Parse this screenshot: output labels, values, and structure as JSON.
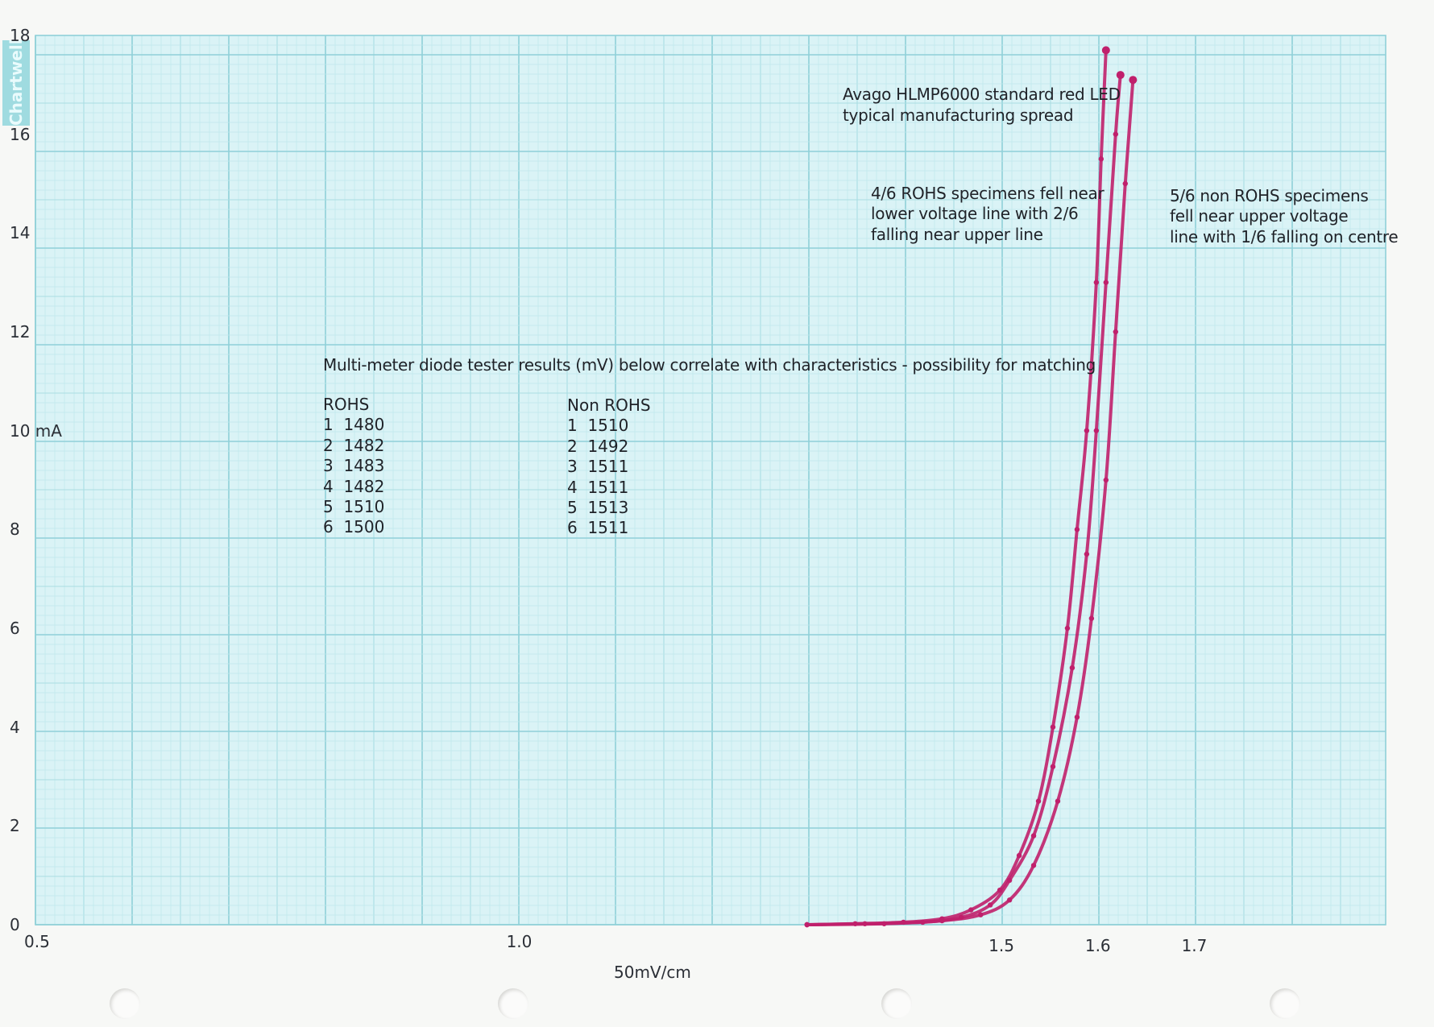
{
  "brand": "Chartwell",
  "chart_data": {
    "type": "line",
    "xlabel": "50mV/cm",
    "ylabel": "mA",
    "xlim": [
      0.5,
      1.9
    ],
    "ylim": [
      0,
      18
    ],
    "grid": true,
    "y_ticks": [
      "0",
      "2",
      "4",
      "6",
      "8",
      "10 mA",
      "12",
      "14",
      "16",
      "18"
    ],
    "y_tick_values": [
      0,
      2,
      4,
      6,
      8,
      10,
      12,
      14,
      16,
      18
    ],
    "x_ticks": [
      {
        "label": "0.5",
        "value": 0.5
      },
      {
        "label": "1.0",
        "value": 1.0
      },
      {
        "label": "1.5",
        "value": 1.5
      },
      {
        "label": "1.6",
        "value": 1.6
      },
      {
        "label": "1.7",
        "value": 1.7
      }
    ],
    "line_color": "#c0206c",
    "series": [
      {
        "x": [
          1.3,
          1.35,
          1.4,
          1.44,
          1.47,
          1.5,
          1.52,
          1.54,
          1.555,
          1.57,
          1.58,
          1.59,
          1.6,
          1.605,
          1.61
        ],
        "y": [
          0,
          0.02,
          0.05,
          0.12,
          0.3,
          0.7,
          1.4,
          2.5,
          4,
          6,
          8,
          10,
          13,
          15.5,
          17.7
        ]
      },
      {
        "x": [
          1.3,
          1.36,
          1.42,
          1.46,
          1.49,
          1.51,
          1.535,
          1.555,
          1.575,
          1.59,
          1.6,
          1.61,
          1.62,
          1.625
        ],
        "y": [
          0,
          0.02,
          0.05,
          0.15,
          0.4,
          0.9,
          1.8,
          3.2,
          5.2,
          7.5,
          10,
          13,
          16,
          17.2
        ]
      },
      {
        "x": [
          1.3,
          1.38,
          1.44,
          1.48,
          1.51,
          1.535,
          1.56,
          1.58,
          1.595,
          1.61,
          1.62,
          1.63,
          1.638
        ],
        "y": [
          0,
          0.02,
          0.08,
          0.2,
          0.5,
          1.2,
          2.5,
          4.2,
          6.2,
          9,
          12,
          15,
          17.1
        ]
      }
    ],
    "annotations": [
      "Avago HLMP6000 standard red LED",
      "typical manufacturing spread",
      "4/6 ROHS specimens fell near",
      "lower voltage line with 2/6",
      "falling near upper line",
      "5/6 non ROHS specimens",
      "fell near upper voltage",
      "line with 1/6 falling on centre",
      "Multi-meter diode tester results (mV) below correlate with characteristics - possibility for matching"
    ]
  },
  "table": {
    "rohs_header": "ROHS",
    "rohs_rows": [
      "1  1480",
      "2  1482",
      "3  1483",
      "4  1482",
      "5  1510",
      "6  1500"
    ],
    "nonrohs_header": "Non ROHS",
    "nonrohs_rows": [
      "1  1510",
      "2  1492",
      "3  1511",
      "4  1511",
      "5  1513",
      "6  1511"
    ]
  }
}
